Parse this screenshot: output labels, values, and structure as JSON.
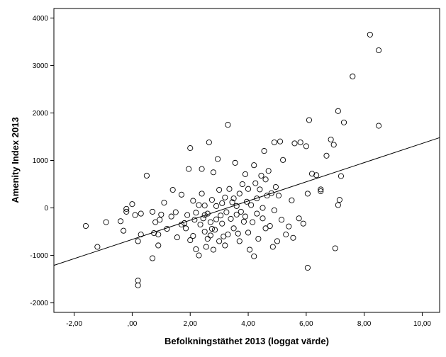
{
  "chart_data": {
    "type": "scatter",
    "title": "",
    "xlabel": "Befolkningstäthet 2013 (loggat värde)",
    "ylabel": "Amenity Index 2013",
    "xlim": [
      -2.7,
      10.6
    ],
    "ylim": [
      -2200,
      4200
    ],
    "x_ticks": [
      -2,
      0,
      2,
      4,
      6,
      8,
      10
    ],
    "x_tick_labels": [
      "-2,00",
      ",00",
      "2,00",
      "4,00",
      "6,00",
      "8,00",
      "10,00"
    ],
    "y_ticks": [
      -2000,
      -1000,
      0,
      1000,
      2000,
      3000,
      4000
    ],
    "y_tick_labels": [
      "-2000",
      "-1000",
      "0",
      "1000",
      "2000",
      "3000",
      "4000"
    ],
    "grid": false,
    "marker": "open-circle",
    "fit_line": {
      "x": [
        -2.7,
        10.6
      ],
      "y": [
        -1210,
        1480
      ]
    },
    "series": [
      {
        "points": [
          [
            -1.6,
            -380
          ],
          [
            -1.2,
            -820
          ],
          [
            -0.9,
            -300
          ],
          [
            -0.4,
            -280
          ],
          [
            -0.3,
            -480
          ],
          [
            -0.2,
            -80
          ],
          [
            -0.2,
            -20
          ],
          [
            0.1,
            -150
          ],
          [
            0.0,
            80
          ],
          [
            0.2,
            -700
          ],
          [
            0.3,
            -560
          ],
          [
            0.3,
            -120
          ],
          [
            0.5,
            680
          ],
          [
            0.2,
            -1530
          ],
          [
            0.2,
            -1630
          ],
          [
            0.7,
            -1060
          ],
          [
            0.7,
            -80
          ],
          [
            0.75,
            -530
          ],
          [
            0.8,
            -300
          ],
          [
            0.9,
            -790
          ],
          [
            0.9,
            -560
          ],
          [
            0.95,
            -250
          ],
          [
            1.0,
            -140
          ],
          [
            1.1,
            110
          ],
          [
            1.2,
            -440
          ],
          [
            1.35,
            -180
          ],
          [
            1.4,
            380
          ],
          [
            1.5,
            -90
          ],
          [
            1.55,
            -620
          ],
          [
            1.7,
            280
          ],
          [
            1.7,
            -350
          ],
          [
            1.8,
            -320
          ],
          [
            1.85,
            -430
          ],
          [
            1.9,
            -150
          ],
          [
            1.95,
            820
          ],
          [
            2.0,
            1260
          ],
          [
            2.0,
            -680
          ],
          [
            2.1,
            -590
          ],
          [
            2.1,
            150
          ],
          [
            2.15,
            -250
          ],
          [
            2.2,
            -100
          ],
          [
            2.2,
            -870
          ],
          [
            2.3,
            60
          ],
          [
            2.3,
            -1000
          ],
          [
            2.35,
            -350
          ],
          [
            2.4,
            820
          ],
          [
            2.4,
            300
          ],
          [
            2.45,
            -220
          ],
          [
            2.5,
            -500
          ],
          [
            2.5,
            -150
          ],
          [
            2.5,
            50
          ],
          [
            2.55,
            -820
          ],
          [
            2.6,
            -650
          ],
          [
            2.6,
            -120
          ],
          [
            2.65,
            1380
          ],
          [
            2.7,
            -300
          ],
          [
            2.7,
            -580
          ],
          [
            2.75,
            170
          ],
          [
            2.75,
            -440
          ],
          [
            2.8,
            750
          ],
          [
            2.8,
            -880
          ],
          [
            2.85,
            -460
          ],
          [
            2.9,
            -240
          ],
          [
            2.9,
            40
          ],
          [
            2.95,
            1030
          ],
          [
            3.0,
            380
          ],
          [
            3.0,
            -700
          ],
          [
            3.05,
            -160
          ],
          [
            3.1,
            100
          ],
          [
            3.1,
            -330
          ],
          [
            3.15,
            -600
          ],
          [
            3.2,
            -790
          ],
          [
            3.2,
            220
          ],
          [
            3.25,
            -90
          ],
          [
            3.3,
            -560
          ],
          [
            3.3,
            1750
          ],
          [
            3.35,
            400
          ],
          [
            3.4,
            -230
          ],
          [
            3.45,
            120
          ],
          [
            3.5,
            -430
          ],
          [
            3.5,
            200
          ],
          [
            3.55,
            950
          ],
          [
            3.6,
            -140
          ],
          [
            3.6,
            40
          ],
          [
            3.65,
            -540
          ],
          [
            3.7,
            300
          ],
          [
            3.7,
            -700
          ],
          [
            3.75,
            -80
          ],
          [
            3.8,
            500
          ],
          [
            3.85,
            -290
          ],
          [
            3.9,
            710
          ],
          [
            3.9,
            -180
          ],
          [
            3.95,
            130
          ],
          [
            4.0,
            -520
          ],
          [
            4.0,
            400
          ],
          [
            4.05,
            -880
          ],
          [
            4.1,
            60
          ],
          [
            4.15,
            -300
          ],
          [
            4.2,
            900
          ],
          [
            4.2,
            -1020
          ],
          [
            4.25,
            520
          ],
          [
            4.3,
            -120
          ],
          [
            4.3,
            200
          ],
          [
            4.35,
            -650
          ],
          [
            4.4,
            390
          ],
          [
            4.45,
            680
          ],
          [
            4.5,
            -220
          ],
          [
            4.5,
            0
          ],
          [
            4.55,
            1200
          ],
          [
            4.6,
            -430
          ],
          [
            4.6,
            600
          ],
          [
            4.65,
            260
          ],
          [
            4.7,
            780
          ],
          [
            4.75,
            -380
          ],
          [
            4.8,
            310
          ],
          [
            4.85,
            -820
          ],
          [
            4.9,
            1380
          ],
          [
            4.9,
            -50
          ],
          [
            4.95,
            440
          ],
          [
            5.0,
            -700
          ],
          [
            5.05,
            260
          ],
          [
            5.1,
            1400
          ],
          [
            5.15,
            -250
          ],
          [
            5.2,
            1010
          ],
          [
            5.3,
            -560
          ],
          [
            5.4,
            -390
          ],
          [
            5.5,
            160
          ],
          [
            5.55,
            -630
          ],
          [
            5.6,
            1360
          ],
          [
            5.75,
            -220
          ],
          [
            5.8,
            1380
          ],
          [
            5.9,
            -330
          ],
          [
            6.0,
            1300
          ],
          [
            6.05,
            300
          ],
          [
            6.05,
            -1260
          ],
          [
            6.1,
            1850
          ],
          [
            6.2,
            720
          ],
          [
            6.35,
            690
          ],
          [
            6.5,
            350
          ],
          [
            6.5,
            390
          ],
          [
            6.7,
            1100
          ],
          [
            6.85,
            1440
          ],
          [
            6.95,
            1330
          ],
          [
            7.0,
            -850
          ],
          [
            7.1,
            2040
          ],
          [
            7.1,
            60
          ],
          [
            7.15,
            170
          ],
          [
            7.2,
            670
          ],
          [
            7.3,
            1800
          ],
          [
            7.6,
            2770
          ],
          [
            8.2,
            3650
          ],
          [
            8.5,
            3320
          ],
          [
            8.5,
            1730
          ]
        ]
      }
    ]
  }
}
